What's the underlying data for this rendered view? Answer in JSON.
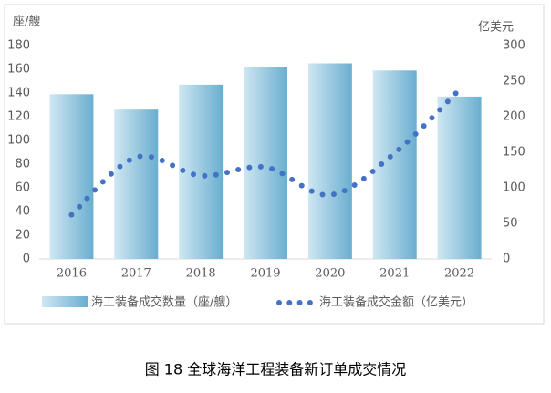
{
  "chart_data": {
    "type": "bar-line",
    "caption": "图 18  全球海洋工程装备新订单成交情况",
    "y_label": "座/艘",
    "y2_label": "亿美元",
    "categories": [
      "2016",
      "2017",
      "2018",
      "2019",
      "2020",
      "2021",
      "2022"
    ],
    "series": [
      {
        "name": "海工装备成交数量（座/艘）",
        "type": "bar",
        "color": "#6aaed0",
        "values": [
          139,
          126,
          147,
          162,
          165,
          159,
          137
        ]
      },
      {
        "name": "海工装备成交金额（亿美元）",
        "type": "line",
        "axis": "y2",
        "color": "#4472c4",
        "values": [
          62,
          143,
          117,
          129,
          90,
          149,
          238
        ]
      }
    ],
    "ylim": [
      0,
      180
    ],
    "yticks": [
      0,
      20,
      40,
      60,
      80,
      100,
      120,
      140,
      160,
      180
    ],
    "y2lim": [
      0,
      300
    ],
    "y2ticks": [
      0,
      50,
      100,
      150,
      200,
      250,
      300
    ],
    "grid": false
  }
}
